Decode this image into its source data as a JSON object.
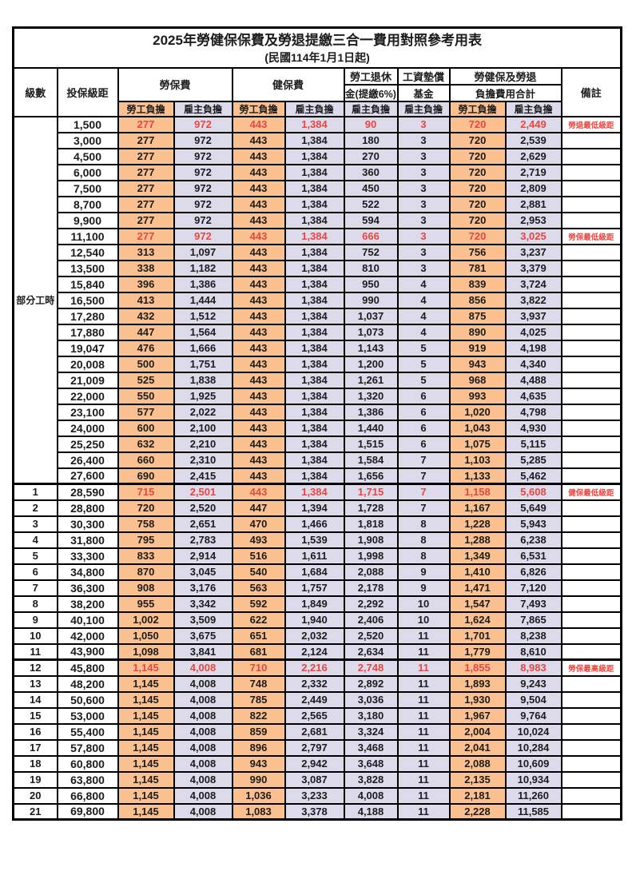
{
  "title": "2025年勞健保保費及勞退提繳三合一費用對照參考用表",
  "subtitle": "(民國114年1月1日起)",
  "colors": {
    "worker_bg": "#FAC090",
    "employer_bg": "#DDDAEC",
    "highlight_text": "#E8473F",
    "border": "#000000"
  },
  "header": {
    "level": "級數",
    "bracket": "投保級距",
    "labor_fee": "勞保費",
    "health_fee": "健保費",
    "pension_line1": "勞工退休",
    "pension_line2": "金(提繳6%)",
    "fund_line1": "工資墊償",
    "fund_line2": "基金",
    "total_line1": "勞健保及勞退",
    "total_line2": "負擔費用合計",
    "remark": "備註",
    "worker": "勞工負擔",
    "employer": "雇主負擔"
  },
  "part_time_label": "部分工時",
  "rows": [
    {
      "level": "",
      "bracket": "1,500",
      "cells": [
        "277",
        "972",
        "443",
        "1,384",
        "90",
        "3",
        "720",
        "2,449"
      ],
      "remark": "勞退最低級距",
      "red": true,
      "thick": false
    },
    {
      "level": "",
      "bracket": "3,000",
      "cells": [
        "277",
        "972",
        "443",
        "1,384",
        "180",
        "3",
        "720",
        "2,539"
      ],
      "remark": "",
      "red": false,
      "thick": false
    },
    {
      "level": "",
      "bracket": "4,500",
      "cells": [
        "277",
        "972",
        "443",
        "1,384",
        "270",
        "3",
        "720",
        "2,629"
      ],
      "remark": "",
      "red": false,
      "thick": false
    },
    {
      "level": "",
      "bracket": "6,000",
      "cells": [
        "277",
        "972",
        "443",
        "1,384",
        "360",
        "3",
        "720",
        "2,719"
      ],
      "remark": "",
      "red": false,
      "thick": false
    },
    {
      "level": "",
      "bracket": "7,500",
      "cells": [
        "277",
        "972",
        "443",
        "1,384",
        "450",
        "3",
        "720",
        "2,809"
      ],
      "remark": "",
      "red": false,
      "thick": false
    },
    {
      "level": "",
      "bracket": "8,700",
      "cells": [
        "277",
        "972",
        "443",
        "1,384",
        "522",
        "3",
        "720",
        "2,881"
      ],
      "remark": "",
      "red": false,
      "thick": false
    },
    {
      "level": "",
      "bracket": "9,900",
      "cells": [
        "277",
        "972",
        "443",
        "1,384",
        "594",
        "3",
        "720",
        "2,953"
      ],
      "remark": "",
      "red": false,
      "thick": false
    },
    {
      "level": "",
      "bracket": "11,100",
      "cells": [
        "277",
        "972",
        "443",
        "1,384",
        "666",
        "3",
        "720",
        "3,025"
      ],
      "remark": "勞保最低級距",
      "red": true,
      "thick": false
    },
    {
      "level": "",
      "bracket": "12,540",
      "cells": [
        "313",
        "1,097",
        "443",
        "1,384",
        "752",
        "3",
        "756",
        "3,237"
      ],
      "remark": "",
      "red": false,
      "thick": false
    },
    {
      "level": "",
      "bracket": "13,500",
      "cells": [
        "338",
        "1,182",
        "443",
        "1,384",
        "810",
        "3",
        "781",
        "3,379"
      ],
      "remark": "",
      "red": false,
      "thick": false
    },
    {
      "level": "",
      "bracket": "15,840",
      "cells": [
        "396",
        "1,386",
        "443",
        "1,384",
        "950",
        "4",
        "839",
        "3,724"
      ],
      "remark": "",
      "red": false,
      "thick": false
    },
    {
      "level": "",
      "bracket": "16,500",
      "cells": [
        "413",
        "1,444",
        "443",
        "1,384",
        "990",
        "4",
        "856",
        "3,822"
      ],
      "remark": "",
      "red": false,
      "thick": false
    },
    {
      "level": "",
      "bracket": "17,280",
      "cells": [
        "432",
        "1,512",
        "443",
        "1,384",
        "1,037",
        "4",
        "875",
        "3,937"
      ],
      "remark": "",
      "red": false,
      "thick": false
    },
    {
      "level": "",
      "bracket": "17,880",
      "cells": [
        "447",
        "1,564",
        "443",
        "1,384",
        "1,073",
        "4",
        "890",
        "4,025"
      ],
      "remark": "",
      "red": false,
      "thick": false
    },
    {
      "level": "",
      "bracket": "19,047",
      "cells": [
        "476",
        "1,666",
        "443",
        "1,384",
        "1,143",
        "5",
        "919",
        "4,198"
      ],
      "remark": "",
      "red": false,
      "thick": false
    },
    {
      "level": "",
      "bracket": "20,008",
      "cells": [
        "500",
        "1,751",
        "443",
        "1,384",
        "1,200",
        "5",
        "943",
        "4,340"
      ],
      "remark": "",
      "red": false,
      "thick": false
    },
    {
      "level": "",
      "bracket": "21,009",
      "cells": [
        "525",
        "1,838",
        "443",
        "1,384",
        "1,261",
        "5",
        "968",
        "4,488"
      ],
      "remark": "",
      "red": false,
      "thick": false
    },
    {
      "level": "",
      "bracket": "22,000",
      "cells": [
        "550",
        "1,925",
        "443",
        "1,384",
        "1,320",
        "6",
        "993",
        "4,635"
      ],
      "remark": "",
      "red": false,
      "thick": false
    },
    {
      "level": "",
      "bracket": "23,100",
      "cells": [
        "577",
        "2,022",
        "443",
        "1,384",
        "1,386",
        "6",
        "1,020",
        "4,798"
      ],
      "remark": "",
      "red": false,
      "thick": false
    },
    {
      "level": "",
      "bracket": "24,000",
      "cells": [
        "600",
        "2,100",
        "443",
        "1,384",
        "1,440",
        "6",
        "1,043",
        "4,930"
      ],
      "remark": "",
      "red": false,
      "thick": false
    },
    {
      "level": "",
      "bracket": "25,250",
      "cells": [
        "632",
        "2,210",
        "443",
        "1,384",
        "1,515",
        "6",
        "1,075",
        "5,115"
      ],
      "remark": "",
      "red": false,
      "thick": false
    },
    {
      "level": "",
      "bracket": "26,400",
      "cells": [
        "660",
        "2,310",
        "443",
        "1,384",
        "1,584",
        "7",
        "1,103",
        "5,285"
      ],
      "remark": "",
      "red": false,
      "thick": false
    },
    {
      "level": "",
      "bracket": "27,600",
      "cells": [
        "690",
        "2,415",
        "443",
        "1,384",
        "1,656",
        "7",
        "1,133",
        "5,462"
      ],
      "remark": "",
      "red": false,
      "thick": false
    },
    {
      "level": "1",
      "bracket": "28,590",
      "cells": [
        "715",
        "2,501",
        "443",
        "1,384",
        "1,715",
        "7",
        "1,158",
        "5,608"
      ],
      "remark": "健保最低級距",
      "red": true,
      "thick": true
    },
    {
      "level": "2",
      "bracket": "28,800",
      "cells": [
        "720",
        "2,520",
        "447",
        "1,394",
        "1,728",
        "7",
        "1,167",
        "5,649"
      ],
      "remark": "",
      "red": false,
      "thick": false
    },
    {
      "level": "3",
      "bracket": "30,300",
      "cells": [
        "758",
        "2,651",
        "470",
        "1,466",
        "1,818",
        "8",
        "1,228",
        "5,943"
      ],
      "remark": "",
      "red": false,
      "thick": false
    },
    {
      "level": "4",
      "bracket": "31,800",
      "cells": [
        "795",
        "2,783",
        "493",
        "1,539",
        "1,908",
        "8",
        "1,288",
        "6,238"
      ],
      "remark": "",
      "red": false,
      "thick": false
    },
    {
      "level": "5",
      "bracket": "33,300",
      "cells": [
        "833",
        "2,914",
        "516",
        "1,611",
        "1,998",
        "8",
        "1,349",
        "6,531"
      ],
      "remark": "",
      "red": false,
      "thick": false
    },
    {
      "level": "6",
      "bracket": "34,800",
      "cells": [
        "870",
        "3,045",
        "540",
        "1,684",
        "2,088",
        "9",
        "1,410",
        "6,826"
      ],
      "remark": "",
      "red": false,
      "thick": false
    },
    {
      "level": "7",
      "bracket": "36,300",
      "cells": [
        "908",
        "3,176",
        "563",
        "1,757",
        "2,178",
        "9",
        "1,471",
        "7,120"
      ],
      "remark": "",
      "red": false,
      "thick": false
    },
    {
      "level": "8",
      "bracket": "38,200",
      "cells": [
        "955",
        "3,342",
        "592",
        "1,849",
        "2,292",
        "10",
        "1,547",
        "7,493"
      ],
      "remark": "",
      "red": false,
      "thick": false
    },
    {
      "level": "9",
      "bracket": "40,100",
      "cells": [
        "1,002",
        "3,509",
        "622",
        "1,940",
        "2,406",
        "10",
        "1,624",
        "7,865"
      ],
      "remark": "",
      "red": false,
      "thick": false
    },
    {
      "level": "10",
      "bracket": "42,000",
      "cells": [
        "1,050",
        "3,675",
        "651",
        "2,032",
        "2,520",
        "11",
        "1,701",
        "8,238"
      ],
      "remark": "",
      "red": false,
      "thick": false
    },
    {
      "level": "11",
      "bracket": "43,900",
      "cells": [
        "1,098",
        "3,841",
        "681",
        "2,124",
        "2,634",
        "11",
        "1,779",
        "8,610"
      ],
      "remark": "",
      "red": false,
      "thick": false
    },
    {
      "level": "12",
      "bracket": "45,800",
      "cells": [
        "1,145",
        "4,008",
        "710",
        "2,216",
        "2,748",
        "11",
        "1,855",
        "8,983"
      ],
      "remark": "勞保最高級距",
      "red": true,
      "thick": true
    },
    {
      "level": "13",
      "bracket": "48,200",
      "cells": [
        "1,145",
        "4,008",
        "748",
        "2,332",
        "2,892",
        "11",
        "1,893",
        "9,243"
      ],
      "remark": "",
      "red": false,
      "thick": false
    },
    {
      "level": "14",
      "bracket": "50,600",
      "cells": [
        "1,145",
        "4,008",
        "785",
        "2,449",
        "3,036",
        "11",
        "1,930",
        "9,504"
      ],
      "remark": "",
      "red": false,
      "thick": false
    },
    {
      "level": "15",
      "bracket": "53,000",
      "cells": [
        "1,145",
        "4,008",
        "822",
        "2,565",
        "3,180",
        "11",
        "1,967",
        "9,764"
      ],
      "remark": "",
      "red": false,
      "thick": false
    },
    {
      "level": "16",
      "bracket": "55,400",
      "cells": [
        "1,145",
        "4,008",
        "859",
        "2,681",
        "3,324",
        "11",
        "2,004",
        "10,024"
      ],
      "remark": "",
      "red": false,
      "thick": false
    },
    {
      "level": "17",
      "bracket": "57,800",
      "cells": [
        "1,145",
        "4,008",
        "896",
        "2,797",
        "3,468",
        "11",
        "2,041",
        "10,284"
      ],
      "remark": "",
      "red": false,
      "thick": false
    },
    {
      "level": "18",
      "bracket": "60,800",
      "cells": [
        "1,145",
        "4,008",
        "943",
        "2,942",
        "3,648",
        "11",
        "2,088",
        "10,609"
      ],
      "remark": "",
      "red": false,
      "thick": false
    },
    {
      "level": "19",
      "bracket": "63,800",
      "cells": [
        "1,145",
        "4,008",
        "990",
        "3,087",
        "3,828",
        "11",
        "2,135",
        "10,934"
      ],
      "remark": "",
      "red": false,
      "thick": false
    },
    {
      "level": "20",
      "bracket": "66,800",
      "cells": [
        "1,145",
        "4,008",
        "1,036",
        "3,233",
        "4,008",
        "11",
        "2,181",
        "11,260"
      ],
      "remark": "",
      "red": false,
      "thick": false
    },
    {
      "level": "21",
      "bracket": "69,800",
      "cells": [
        "1,145",
        "4,008",
        "1,083",
        "3,378",
        "4,188",
        "11",
        "2,228",
        "11,585"
      ],
      "remark": "",
      "red": false,
      "thick": false
    }
  ]
}
